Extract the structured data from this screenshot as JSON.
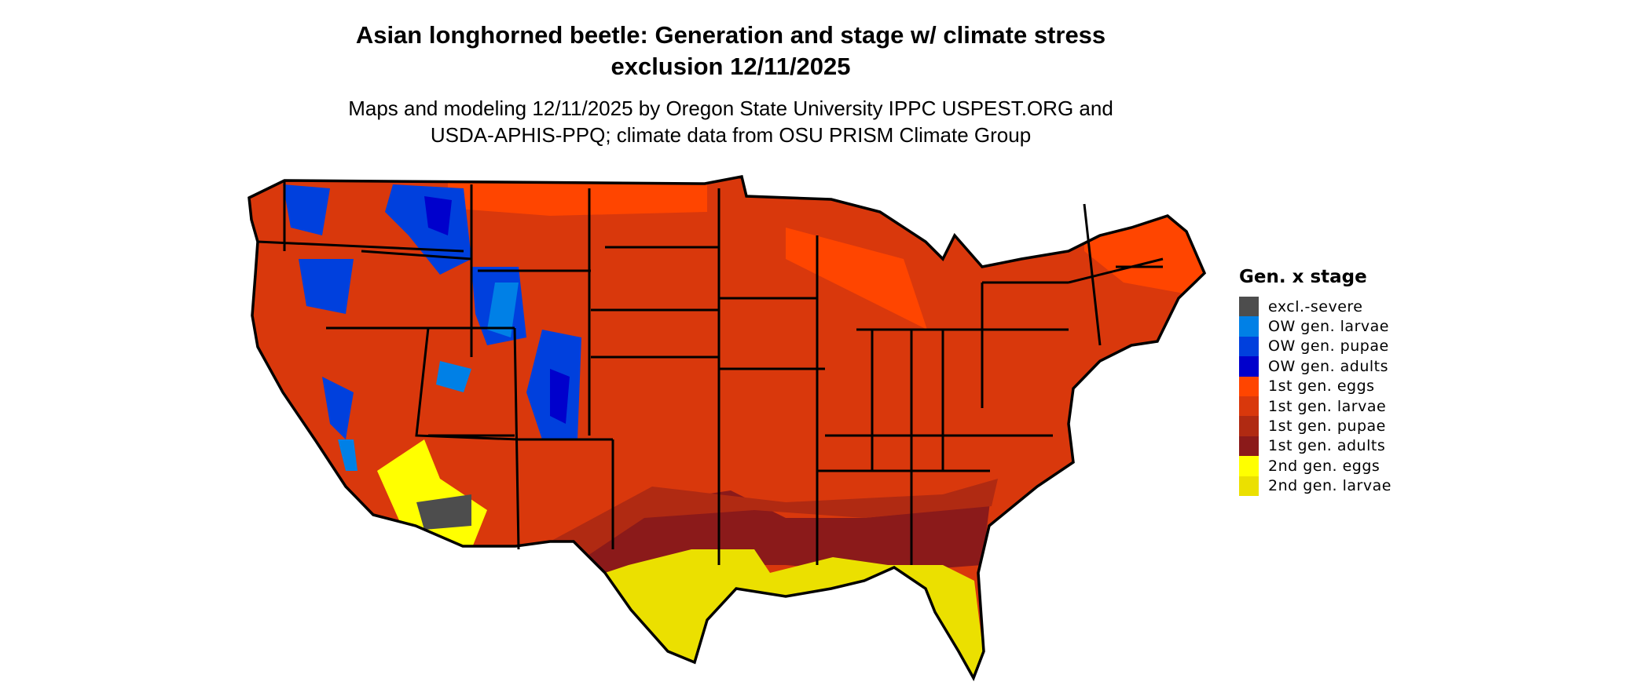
{
  "title_line1": "Asian longhorned beetle: Generation and stage w/ climate stress",
  "title_line2": "exclusion 12/11/2025",
  "subtitle_line1": "Maps and modeling 12/11/2025 by Oregon State University IPPC USPEST.ORG and",
  "subtitle_line2": "USDA-APHIS-PPQ; climate data from OSU PRISM Climate Group",
  "legend": {
    "title": "Gen. x stage",
    "items": [
      {
        "label": "excl.-severe",
        "color": "#4d4d4d"
      },
      {
        "label": "OW gen. larvae",
        "color": "#0080e6"
      },
      {
        "label": "OW gen. pupae",
        "color": "#0040dd"
      },
      {
        "label": "OW gen. adults",
        "color": "#0000cc"
      },
      {
        "label": "1st gen. eggs",
        "color": "#ff4500"
      },
      {
        "label": "1st gen. larvae",
        "color": "#d9380c"
      },
      {
        "label": "1st gen. pupae",
        "color": "#b02a12"
      },
      {
        "label": "1st gen. adults",
        "color": "#8b1a1a"
      },
      {
        "label": "2nd gen. eggs",
        "color": "#ffff00"
      },
      {
        "label": "2nd gen. larvae",
        "color": "#ebe000"
      }
    ]
  },
  "chart_data": {
    "type": "map",
    "region": "contiguous United States",
    "variable": "Gen. x stage",
    "dominant_class": "1st gen. larvae",
    "classes": [
      "excl.-severe",
      "OW gen. larvae",
      "OW gen. pupae",
      "OW gen. adults",
      "1st gen. eggs",
      "1st gen. larvae",
      "1st gen. pupae",
      "1st gen. adults",
      "2nd gen. eggs",
      "2nd gen. larvae"
    ],
    "legend_position": "right"
  }
}
